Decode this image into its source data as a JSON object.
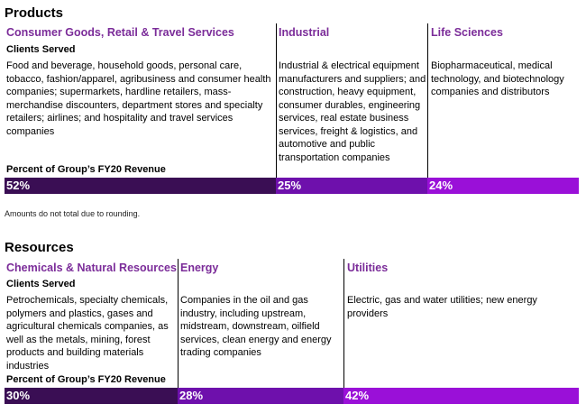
{
  "products": {
    "title": "Products",
    "columns": [
      {
        "name": "Consumer Goods, Retail & Travel Services",
        "clients_label": "Clients Served",
        "description": "Food and beverage, household goods, personal care, tobacco, fashion/apparel, agribusiness and consumer health companies; supermarkets, hardline retailers, mass-merchandise discounters, department stores and specialty retailers; airlines; and hospitality and travel services companies",
        "pct": "52%",
        "pct_value": 52,
        "bar_color": "#3a0e54"
      },
      {
        "name": "Industrial",
        "description": "Industrial & electrical equipment manufacturers and suppliers; and construction, heavy equipment, consumer durables, engineering services, real estate business services, freight & logistics, and automotive and public transportation companies",
        "pct": "25%",
        "pct_value": 25,
        "bar_color": "#6e10ac"
      },
      {
        "name": "Life Sciences",
        "description": "Biopharmaceutical, medical technology, and biotechnology companies and distributors",
        "pct": "24%",
        "pct_value": 24,
        "bar_color": "#9a10d8"
      }
    ],
    "revenue_label": "Percent of Group’s FY20 Revenue",
    "note": "Amounts do not total due to rounding."
  },
  "resources": {
    "title": "Resources",
    "columns": [
      {
        "name": "Chemicals & Natural Resources",
        "clients_label": "Clients Served",
        "description": "Petrochemicals, specialty chemicals, polymers and plastics, gases and agricultural chemicals companies, as well as the metals, mining, forest products and building materials industries",
        "pct": "30%",
        "pct_value": 30,
        "bar_color": "#3a0e54"
      },
      {
        "name": "Energy",
        "description": "Companies in the oil and gas industry, including upstream, midstream, downstream, oilfield services, clean energy and energy trading companies",
        "pct": "28%",
        "pct_value": 28,
        "bar_color": "#6e10ac"
      },
      {
        "name": "Utilities",
        "description": "Electric, gas and water utilities; new energy providers",
        "pct": "42%",
        "pct_value": 42,
        "bar_color": "#9a10d8"
      }
    ],
    "revenue_label": "Percent of Group’s FY20 Revenue"
  }
}
